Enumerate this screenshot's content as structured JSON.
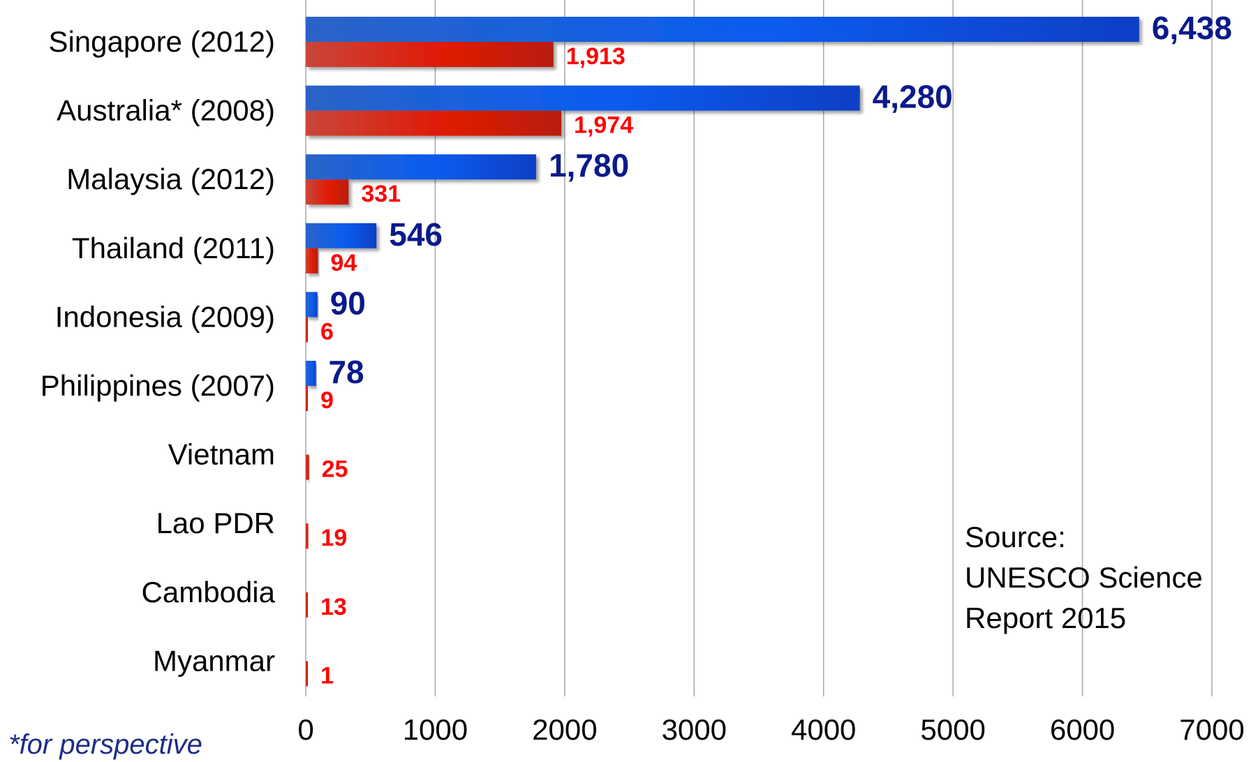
{
  "chart_data": {
    "type": "bar",
    "orientation": "horizontal",
    "categories": [
      "Singapore (2012)",
      "Australia* (2008)",
      "Malaysia (2012)",
      "Thailand (2011)",
      "Indonesia (2009)",
      "Philippines (2007)",
      "Vietnam",
      "Lao PDR",
      "Cambodia",
      "Myanmar"
    ],
    "series": [
      {
        "color": "#1552d6",
        "label_color": "#0a1a8a",
        "values": [
          6438,
          4280,
          1780,
          546,
          90,
          78,
          null,
          null,
          null,
          null
        ],
        "labels": [
          "6,438",
          "4,280",
          "1,780",
          "546",
          "90",
          "78",
          "",
          "",
          "",
          ""
        ]
      },
      {
        "color": "#d42411",
        "label_color": "#ff0000",
        "values": [
          1913,
          1974,
          331,
          94,
          6,
          9,
          25,
          19,
          13,
          1
        ],
        "labels": [
          "1,913",
          "1,974",
          "331",
          "94",
          "6",
          "9",
          "25",
          "19",
          "13",
          "1"
        ]
      }
    ],
    "xlim": [
      0,
      7000
    ],
    "xticks": [
      0,
      1000,
      2000,
      3000,
      4000,
      5000,
      6000,
      7000
    ],
    "xtick_labels": [
      "0",
      "1000",
      "2000",
      "3000",
      "4000",
      "5000",
      "6000",
      "7000"
    ],
    "grid": "vertical",
    "legend": "none",
    "annotation": [
      "Source:",
      "UNESCO Science",
      "Report 2015"
    ],
    "footnote": "*for perspective"
  }
}
